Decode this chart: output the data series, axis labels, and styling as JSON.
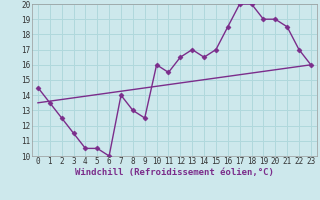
{
  "line1_x": [
    0,
    1,
    2,
    3,
    4,
    5,
    6,
    7,
    8,
    9,
    10,
    11,
    12,
    13,
    14,
    15,
    16,
    17,
    18,
    19,
    20,
    21,
    22,
    23
  ],
  "line1_y": [
    14.5,
    13.5,
    12.5,
    11.5,
    10.5,
    10.5,
    10.0,
    14.0,
    13.0,
    12.5,
    16.0,
    15.5,
    16.5,
    17.0,
    16.5,
    17.0,
    18.5,
    20.0,
    20.0,
    19.0,
    19.0,
    18.5,
    17.0,
    16.0
  ],
  "line2_x": [
    0,
    23
  ],
  "line2_y": [
    13.5,
    16.0
  ],
  "color": "#7b2d8b",
  "bg_color": "#cde8ec",
  "grid_color": "#b0d8dc",
  "xlabel": "Windchill (Refroidissement éolien,°C)",
  "xlim": [
    -0.5,
    23.5
  ],
  "ylim": [
    10,
    20
  ],
  "xticks": [
    0,
    1,
    2,
    3,
    4,
    5,
    6,
    7,
    8,
    9,
    10,
    11,
    12,
    13,
    14,
    15,
    16,
    17,
    18,
    19,
    20,
    21,
    22,
    23
  ],
  "yticks": [
    10,
    11,
    12,
    13,
    14,
    15,
    16,
    17,
    18,
    19,
    20
  ],
  "marker": "D",
  "markersize": 2.5,
  "linewidth": 1.0,
  "xlabel_fontsize": 6.5,
  "tick_fontsize": 5.5
}
